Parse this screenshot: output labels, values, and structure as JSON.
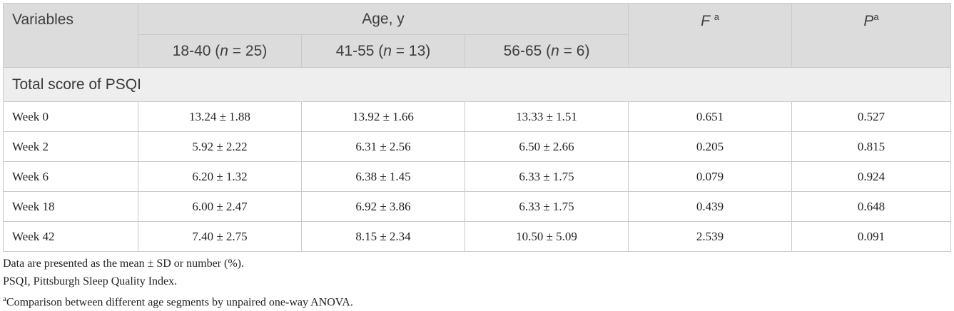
{
  "table": {
    "headers": {
      "variables": "Variables",
      "age_group": "Age, y",
      "f_label": "F",
      "f_sup": "a",
      "p_label": "P",
      "p_sup": "a",
      "age_cols": [
        {
          "range": "18-40 (",
          "n": "n",
          "eq": " = 25)"
        },
        {
          "range": "41-55 (",
          "n": "n",
          "eq": " = 13)"
        },
        {
          "range": "56-65 (",
          "n": "n",
          "eq": " = 6)"
        }
      ]
    },
    "section": "Total score of PSQI",
    "rows": [
      {
        "label": "Week 0",
        "c1": "13.24 ± 1.88",
        "c2": "13.92 ± 1.66",
        "c3": "13.33 ± 1.51",
        "f": "0.651",
        "p": "0.527"
      },
      {
        "label": "Week 2",
        "c1": "5.92 ± 2.22",
        "c2": "6.31 ± 2.56",
        "c3": "6.50 ± 2.66",
        "f": "0.205",
        "p": "0.815"
      },
      {
        "label": "Week 6",
        "c1": "6.20 ± 1.32",
        "c2": "6.38 ± 1.45",
        "c3": "6.33 ± 1.75",
        "f": "0.079",
        "p": "0.924"
      },
      {
        "label": "Week 18",
        "c1": "6.00 ± 2.47",
        "c2": "6.92 ± 3.86",
        "c3": "6.33 ± 1.75",
        "f": "0.439",
        "p": "0.648"
      },
      {
        "label": "Week 42",
        "c1": "7.40 ± 2.75",
        "c2": "8.15 ± 2.34",
        "c3": "10.50 ± 5.09",
        "f": "2.539",
        "p": "0.091"
      }
    ]
  },
  "notes": {
    "line1": "Data are presented as the mean ± SD or number (%).",
    "line2": "PSQI, Pittsburgh Sleep Quality Index.",
    "line3_sup": "a",
    "line3": "Comparison between different age segments by unpaired one-way ANOVA."
  }
}
